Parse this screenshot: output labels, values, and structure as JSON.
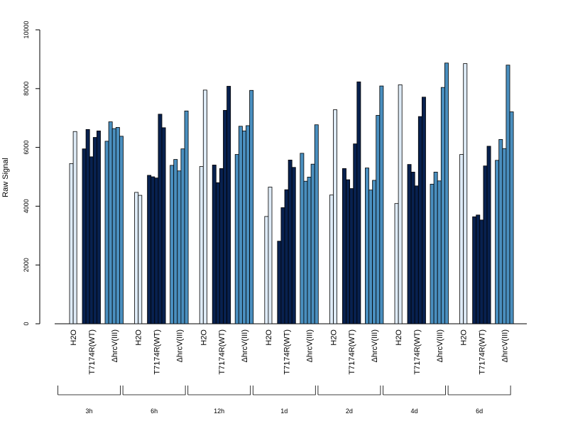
{
  "chart_data": {
    "type": "bar",
    "ylabel": "Raw Signal",
    "ylim": [
      0,
      10000
    ],
    "yticks": [
      0,
      2000,
      4000,
      6000,
      8000,
      10000
    ],
    "group_labels": [
      "H2O",
      "T7174R(WT)",
      "ΔhrcV(III)"
    ],
    "colors": {
      "H2O": "#deebf7",
      "T7174R(WT)": "#08214f",
      "ΔhrcV(III)": "#4a8fbf"
    },
    "time_points": [
      "3h",
      "6h",
      "12h",
      "1d",
      "2d",
      "4d",
      "6d"
    ],
    "data": [
      {
        "time": "3h",
        "H2O": [
          5450,
          6540
        ],
        "T7174R(WT)": [
          5950,
          6610,
          5680,
          6340,
          6560
        ],
        "ΔhrcV(III)": [
          6210,
          6870,
          6640,
          6680,
          6380
        ]
      },
      {
        "time": "6h",
        "H2O": [
          4470,
          4370
        ],
        "T7174R(WT)": [
          5050,
          5000,
          4960,
          7130,
          6670
        ],
        "ΔhrcV(III)": [
          5390,
          5590,
          5200,
          5950,
          7240
        ]
      },
      {
        "time": "12h",
        "H2O": [
          5350,
          7950
        ],
        "T7174R(WT)": [
          5400,
          4800,
          5280,
          7260,
          8080
        ],
        "ΔhrcV(III)": [
          5760,
          6720,
          6560,
          6740,
          7940
        ]
      },
      {
        "time": "1d",
        "H2O": [
          3650,
          4650
        ],
        "T7174R(WT)": [
          2810,
          3950,
          4560,
          5570,
          5320
        ],
        "ΔhrcV(III)": [
          5800,
          4850,
          4990,
          5430,
          6770
        ]
      },
      {
        "time": "2d",
        "H2O": [
          4380,
          7280
        ],
        "T7174R(WT)": [
          5280,
          4900,
          4600,
          6120,
          8230
        ],
        "ΔhrcV(III)": [
          5300,
          4550,
          4880,
          7090,
          8090
        ]
      },
      {
        "time": "4d",
        "H2O": [
          4090,
          8130
        ],
        "T7174R(WT)": [
          5420,
          5160,
          4690,
          7050,
          7710
        ],
        "ΔhrcV(III)": [
          4750,
          5160,
          4860,
          8040,
          8870
        ]
      },
      {
        "time": "6d",
        "H2O": [
          5760,
          8850
        ],
        "T7174R(WT)": [
          3640,
          3700,
          3530,
          5370,
          6040
        ],
        "ΔhrcV(III)": [
          5560,
          6270,
          5960,
          8800,
          7210
        ]
      }
    ]
  }
}
